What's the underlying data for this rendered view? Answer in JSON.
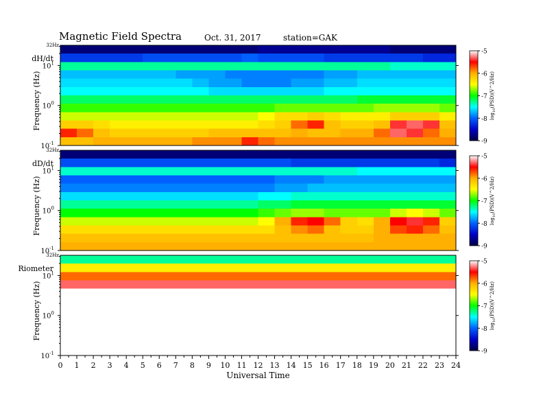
{
  "header": {
    "title": "Magnetic  Field  Spectra",
    "date": "Oct. 31, 2017",
    "station": "station=GAK"
  },
  "chart_data": {
    "type": "heatmap",
    "xlabel": "Universal Time",
    "x_ticks": [
      "0",
      "1",
      "2",
      "3",
      "4",
      "5",
      "6",
      "7",
      "8",
      "9",
      "10",
      "11",
      "12",
      "13",
      "14",
      "15",
      "16",
      "17",
      "18",
      "19",
      "20",
      "21",
      "22",
      "23",
      "24"
    ],
    "xlim": [
      0,
      24
    ],
    "y_scale": "log",
    "ylim": [
      0.1,
      32
    ],
    "ylabel": "Frequency  (Hz)",
    "y_ticks": [
      {
        "base": "10",
        "exp": "1",
        "value": 10
      },
      {
        "base": "10",
        "exp": "0",
        "value": 1
      },
      {
        "base": "10",
        "exp": "-1",
        "value": 0.1
      }
    ],
    "y_top_label": "32Hz",
    "colorbar": {
      "label": "log10(PSD)(V^2/Hz)",
      "label_prefix": "log",
      "label_sub": "10",
      "label_suffix": "(PSD)(V^2/Hz)",
      "range": [
        -9,
        -5
      ],
      "ticks": [
        "-5",
        "-6",
        "-7",
        "-8",
        "-9"
      ],
      "colors": [
        "#ffffff",
        "#ff0000",
        "#ffb000",
        "#ffff00",
        "#00ff00",
        "#00ffff",
        "#0060ff",
        "#0000c8",
        "#000040"
      ]
    },
    "panels": [
      {
        "name": "dH/dt",
        "rows": [
          [
            -8.8,
            -8.8,
            -8.8,
            -8.8,
            -8.8,
            -8.8,
            -8.8,
            -8.8,
            -8.8,
            -8.8,
            -8.8,
            -8.8,
            -8.7,
            -8.7,
            -8.7,
            -8.7,
            -8.7,
            -8.7,
            -8.7,
            -8.7,
            -8.8,
            -8.8,
            -8.8,
            -8.8
          ],
          [
            -8.2,
            -8.2,
            -8.2,
            -8.2,
            -8.2,
            -8.1,
            -8.1,
            -8.1,
            -8.1,
            -8.1,
            -8.1,
            -8.0,
            -8.1,
            -8.1,
            -8.1,
            -8.1,
            -8.2,
            -8.2,
            -8.2,
            -8.2,
            -8.2,
            -8.2,
            -8.3,
            -8.3
          ],
          [
            -7.3,
            -7.3,
            -7.3,
            -7.3,
            -7.3,
            -7.3,
            -7.3,
            -7.3,
            -7.3,
            -7.3,
            -7.3,
            -7.3,
            -7.3,
            -7.3,
            -7.3,
            -7.3,
            -7.3,
            -7.3,
            -7.3,
            -7.3,
            -7.4,
            -7.4,
            -7.4,
            -7.4
          ],
          [
            -7.7,
            -7.7,
            -7.7,
            -7.7,
            -7.7,
            -7.7,
            -7.7,
            -7.8,
            -7.8,
            -7.8,
            -7.9,
            -7.9,
            -7.9,
            -7.9,
            -7.9,
            -7.9,
            -7.8,
            -7.8,
            -7.7,
            -7.7,
            -7.7,
            -7.7,
            -7.7,
            -7.7
          ],
          [
            -7.6,
            -7.6,
            -7.6,
            -7.6,
            -7.6,
            -7.6,
            -7.6,
            -7.6,
            -7.7,
            -7.8,
            -7.8,
            -7.9,
            -7.9,
            -7.9,
            -7.8,
            -7.8,
            -7.7,
            -7.7,
            -7.6,
            -7.6,
            -7.6,
            -7.6,
            -7.6,
            -7.6
          ],
          [
            -7.5,
            -7.5,
            -7.5,
            -7.5,
            -7.5,
            -7.5,
            -7.5,
            -7.5,
            -7.5,
            -7.6,
            -7.6,
            -7.6,
            -7.6,
            -7.6,
            -7.6,
            -7.6,
            -7.5,
            -7.5,
            -7.5,
            -7.5,
            -7.5,
            -7.5,
            -7.5,
            -7.5
          ],
          [
            -7.2,
            -7.2,
            -7.2,
            -7.2,
            -7.2,
            -7.2,
            -7.2,
            -7.2,
            -7.2,
            -7.2,
            -7.2,
            -7.2,
            -7.2,
            -7.2,
            -7.2,
            -7.2,
            -7.2,
            -7.2,
            -7.1,
            -7.1,
            -7.1,
            -7.1,
            -7.1,
            -7.1
          ],
          [
            -6.9,
            -6.9,
            -6.9,
            -6.9,
            -6.9,
            -6.9,
            -6.9,
            -6.9,
            -6.9,
            -6.9,
            -6.9,
            -6.9,
            -6.9,
            -6.8,
            -6.8,
            -6.8,
            -6.8,
            -6.8,
            -6.8,
            -6.7,
            -6.7,
            -6.7,
            -6.7,
            -6.8
          ],
          [
            -6.6,
            -6.6,
            -6.6,
            -6.6,
            -6.6,
            -6.6,
            -6.6,
            -6.6,
            -6.6,
            -6.6,
            -6.6,
            -6.6,
            -6.5,
            -6.3,
            -6.3,
            -6.2,
            -6.3,
            -6.4,
            -6.4,
            -6.4,
            -6.2,
            -6.2,
            -6.2,
            -6.4
          ],
          [
            -6.2,
            -6.2,
            -6.3,
            -6.4,
            -6.4,
            -6.4,
            -6.4,
            -6.4,
            -6.4,
            -6.4,
            -6.4,
            -6.4,
            -6.3,
            -6.2,
            -5.8,
            -5.6,
            -6.1,
            -6.2,
            -6.2,
            -6.1,
            -5.4,
            -5.3,
            -5.4,
            -6.1
          ],
          [
            -5.6,
            -5.8,
            -6.1,
            -6.2,
            -6.2,
            -6.2,
            -6.2,
            -6.2,
            -6.2,
            -6.1,
            -6.1,
            -6.1,
            -6.1,
            -6.1,
            -6.0,
            -6.1,
            -6.1,
            -6.0,
            -6.0,
            -5.8,
            -5.3,
            -5.4,
            -5.8,
            -6.0
          ],
          [
            -6.1,
            -6.1,
            -6.0,
            -6.0,
            -6.0,
            -6.0,
            -6.0,
            -6.0,
            -5.9,
            -5.9,
            -5.9,
            -5.6,
            -5.8,
            -5.9,
            -5.9,
            -5.9,
            -5.9,
            -5.9,
            -5.9,
            -5.9,
            -5.9,
            -5.9,
            -5.9,
            -5.9
          ]
        ]
      },
      {
        "name": "dD/dt",
        "rows": [
          [
            -8.8,
            -8.8,
            -8.8,
            -8.8,
            -8.8,
            -8.8,
            -8.8,
            -8.8,
            -8.8,
            -8.8,
            -8.8,
            -8.8,
            -8.8,
            -8.8,
            -8.8,
            -8.8,
            -8.8,
            -8.8,
            -8.8,
            -8.8,
            -8.8,
            -8.8,
            -8.8,
            -8.8
          ],
          [
            -8.1,
            -8.1,
            -8.1,
            -8.1,
            -8.1,
            -8.1,
            -8.1,
            -8.1,
            -8.1,
            -8.1,
            -8.1,
            -8.1,
            -8.1,
            -8.1,
            -8.2,
            -8.2,
            -8.2,
            -8.2,
            -8.2,
            -8.2,
            -8.2,
            -8.2,
            -8.2,
            -8.3
          ],
          [
            -7.4,
            -7.4,
            -7.4,
            -7.4,
            -7.4,
            -7.4,
            -7.4,
            -7.4,
            -7.4,
            -7.4,
            -7.4,
            -7.4,
            -7.4,
            -7.4,
            -7.4,
            -7.4,
            -7.4,
            -7.4,
            -7.5,
            -7.5,
            -7.5,
            -7.5,
            -7.5,
            -7.5
          ],
          [
            -8.0,
            -8.0,
            -8.0,
            -8.0,
            -8.0,
            -8.0,
            -8.0,
            -8.0,
            -8.0,
            -8.0,
            -8.0,
            -8.0,
            -8.0,
            -7.9,
            -7.9,
            -7.9,
            -7.8,
            -7.8,
            -7.8,
            -7.8,
            -7.8,
            -7.8,
            -7.8,
            -7.8
          ],
          [
            -7.9,
            -7.9,
            -7.9,
            -7.9,
            -7.9,
            -7.9,
            -7.9,
            -7.9,
            -7.9,
            -7.9,
            -7.9,
            -7.9,
            -7.9,
            -7.8,
            -7.8,
            -7.7,
            -7.7,
            -7.7,
            -7.7,
            -7.7,
            -7.7,
            -7.7,
            -7.7,
            -7.7
          ],
          [
            -7.6,
            -7.6,
            -7.6,
            -7.6,
            -7.6,
            -7.6,
            -7.6,
            -7.6,
            -7.6,
            -7.6,
            -7.6,
            -7.6,
            -7.5,
            -7.5,
            -7.4,
            -7.4,
            -7.4,
            -7.4,
            -7.4,
            -7.4,
            -7.4,
            -7.4,
            -7.4,
            -7.4
          ],
          [
            -7.3,
            -7.3,
            -7.3,
            -7.3,
            -7.3,
            -7.3,
            -7.3,
            -7.3,
            -7.3,
            -7.3,
            -7.3,
            -7.3,
            -7.2,
            -7.2,
            -7.1,
            -7.1,
            -7.1,
            -7.1,
            -7.1,
            -7.1,
            -7.1,
            -7.1,
            -7.1,
            -7.1
          ],
          [
            -7.0,
            -7.0,
            -7.0,
            -7.0,
            -7.0,
            -7.0,
            -7.0,
            -7.0,
            -7.0,
            -7.0,
            -7.0,
            -7.0,
            -6.9,
            -6.8,
            -6.7,
            -6.7,
            -6.8,
            -6.8,
            -6.8,
            -6.8,
            -6.6,
            -6.5,
            -6.6,
            -6.8
          ],
          [
            -6.6,
            -6.6,
            -6.6,
            -6.6,
            -6.6,
            -6.6,
            -6.6,
            -6.6,
            -6.6,
            -6.6,
            -6.6,
            -6.6,
            -6.5,
            -6.0,
            -5.6,
            -5.5,
            -5.8,
            -6.2,
            -6.3,
            -6.0,
            -5.5,
            -5.4,
            -5.6,
            -6.2
          ],
          [
            -6.3,
            -6.3,
            -6.3,
            -6.3,
            -6.3,
            -6.3,
            -6.3,
            -6.3,
            -6.3,
            -6.3,
            -6.3,
            -6.3,
            -6.3,
            -6.1,
            -5.9,
            -5.8,
            -6.1,
            -6.2,
            -6.2,
            -6.0,
            -5.7,
            -5.6,
            -5.8,
            -6.1
          ],
          [
            -6.1,
            -6.1,
            -6.1,
            -6.1,
            -6.1,
            -6.1,
            -6.1,
            -6.1,
            -6.1,
            -6.1,
            -6.1,
            -6.1,
            -6.1,
            -6.1,
            -6.1,
            -6.1,
            -6.1,
            -6.1,
            -6.1,
            -6.0,
            -6.0,
            -6.0,
            -6.0,
            -6.0
          ],
          [
            -6.0,
            -6.0,
            -6.0,
            -6.0,
            -6.0,
            -6.0,
            -6.0,
            -6.0,
            -6.0,
            -6.0,
            -6.0,
            -6.0,
            -6.0,
            -6.0,
            -6.0,
            -6.0,
            -6.0,
            -6.0,
            -6.0,
            -6.0,
            -6.0,
            -6.0,
            -6.0,
            -6.0
          ]
        ]
      },
      {
        "name": "Riometer",
        "rows": [
          [
            -7.3,
            -7.3,
            -7.3,
            -7.3,
            -7.3,
            -7.3,
            -7.3,
            -7.3,
            -7.3,
            -7.3,
            -7.3,
            -7.3,
            -7.3,
            -7.3,
            -7.3,
            -7.3,
            -7.3,
            -7.3,
            -7.3,
            -7.3,
            -7.3,
            -7.3,
            -7.3,
            -7.3
          ],
          [
            -6.4,
            -6.4,
            -6.4,
            -6.4,
            -6.4,
            -6.4,
            -6.4,
            -6.4,
            -6.4,
            -6.4,
            -6.4,
            -6.4,
            -6.4,
            -6.4,
            -6.4,
            -6.4,
            -6.4,
            -6.4,
            -6.4,
            -6.4,
            -6.4,
            -6.4,
            -6.4,
            -6.4
          ],
          [
            -5.8,
            -5.8,
            -5.8,
            -5.8,
            -5.8,
            -5.8,
            -5.8,
            -5.8,
            -5.8,
            -5.8,
            -5.8,
            -5.8,
            -5.8,
            -5.8,
            -5.8,
            -5.8,
            -5.8,
            -5.8,
            -5.8,
            -5.8,
            -5.8,
            -5.8,
            -5.8,
            -5.8
          ],
          [
            -5.3,
            -5.3,
            -5.3,
            -5.3,
            -5.3,
            -5.3,
            -5.3,
            -5.3,
            -5.3,
            -5.3,
            -5.3,
            -5.3,
            -5.3,
            -5.3,
            -5.3,
            -5.3,
            -5.3,
            -5.3,
            -5.3,
            -5.3,
            -5.3,
            -5.3,
            -5.3,
            -5.3
          ],
          [
            -5.0,
            -5.0,
            -5.0,
            -5.0,
            -5.0,
            -5.0,
            -5.0,
            -5.0,
            -5.0,
            -5.0,
            -5.0,
            -5.0,
            -5.0,
            -5.0,
            -5.0,
            -5.0,
            -5.0,
            -5.0,
            -5.0,
            -5.0,
            -5.0,
            -5.0,
            -5.0,
            -5.0
          ],
          [
            -5.0,
            -5.0,
            -5.0,
            -5.0,
            -5.0,
            -5.0,
            -5.0,
            -5.0,
            -5.0,
            -5.0,
            -5.0,
            -5.0,
            -5.0,
            -5.0,
            -5.0,
            -5.0,
            -5.0,
            -5.0,
            -5.0,
            -5.0,
            -5.0,
            -5.0,
            -5.0,
            -5.0
          ],
          [
            -5.0,
            -5.0,
            -5.0,
            -5.0,
            -5.0,
            -5.0,
            -5.0,
            -5.0,
            -5.0,
            -5.0,
            -5.0,
            -5.0,
            -5.0,
            -5.0,
            -5.0,
            -5.0,
            -5.0,
            -5.0,
            -5.0,
            -5.0,
            -5.0,
            -5.0,
            -5.0,
            -5.0
          ],
          [
            -5.0,
            -5.0,
            -5.0,
            -5.0,
            -5.0,
            -5.0,
            -5.0,
            -5.0,
            -5.0,
            -5.0,
            -5.0,
            -5.0,
            -5.0,
            -5.0,
            -5.0,
            -5.0,
            -5.0,
            -5.0,
            -5.0,
            -5.0,
            -5.0,
            -5.0,
            -5.0,
            -5.0
          ],
          [
            -5.0,
            -5.0,
            -5.0,
            -5.0,
            -5.0,
            -5.0,
            -5.0,
            -5.0,
            -5.0,
            -5.0,
            -5.0,
            -5.0,
            -5.0,
            -5.0,
            -5.0,
            -5.0,
            -5.0,
            -5.0,
            -5.0,
            -5.0,
            -5.0,
            -5.0,
            -5.0,
            -5.0
          ],
          [
            -5.0,
            -5.0,
            -5.0,
            -5.0,
            -5.0,
            -5.0,
            -5.0,
            -5.0,
            -5.0,
            -5.0,
            -5.0,
            -5.0,
            -5.0,
            -5.0,
            -5.0,
            -5.0,
            -5.0,
            -5.0,
            -5.0,
            -5.0,
            -5.0,
            -5.0,
            -5.0,
            -5.0
          ],
          [
            -5.0,
            -5.0,
            -5.0,
            -5.0,
            -5.0,
            -5.0,
            -5.0,
            -5.0,
            -5.0,
            -5.0,
            -5.0,
            -5.0,
            -5.0,
            -5.0,
            -5.0,
            -5.0,
            -5.0,
            -5.0,
            -5.0,
            -5.0,
            -5.0,
            -5.0,
            -5.0,
            -5.0
          ],
          [
            -5.0,
            -5.0,
            -5.0,
            -5.0,
            -5.0,
            -5.0,
            -5.0,
            -5.0,
            -5.0,
            -5.0,
            -5.0,
            -5.0,
            -5.0,
            -5.0,
            -5.0,
            -5.0,
            -5.0,
            -5.0,
            -5.0,
            -5.0,
            -5.0,
            -5.0,
            -5.0,
            -5.0
          ]
        ]
      }
    ]
  }
}
